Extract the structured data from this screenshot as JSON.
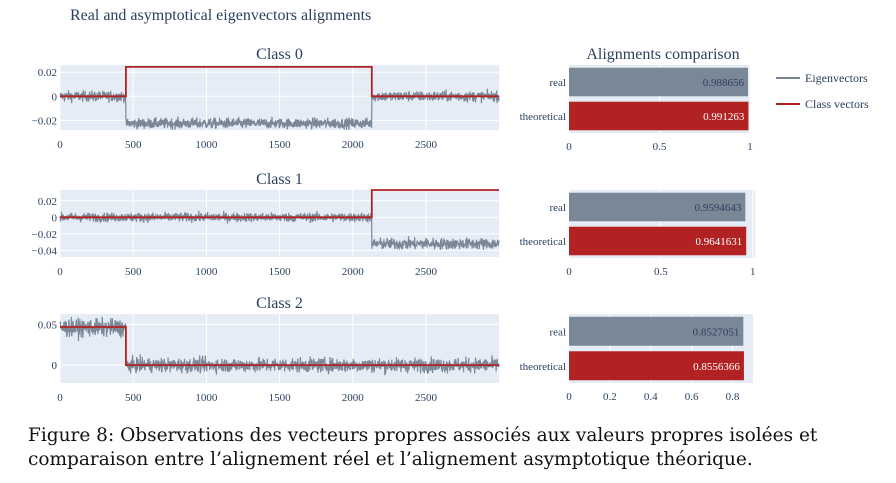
{
  "figure_title": "Real and asymptotical eigenvectors alignments",
  "legend": {
    "eigen_label": "Eigenvectors",
    "class_label": "Class vectors"
  },
  "colors": {
    "eigen": "#7a8797",
    "class_vec": "#b22222",
    "plot_bg": "#e5ecf6",
    "grid": "#ffffff",
    "text": "#2a3f5f"
  },
  "caption": "Figure 8: Observations des vecteurs propres associés aux valeurs propres isolées et comparaison entre l’alignement réel et l’alignement asymptotique théorique.",
  "chart_data": [
    {
      "type": "line",
      "title": "Class 0",
      "x_ticks": [
        0,
        500,
        1000,
        1500,
        2000,
        2500
      ],
      "y_ticks": [
        "0.02",
        "0",
        "−0.02"
      ],
      "y_tick_values": [
        0.02,
        0,
        -0.02
      ],
      "xlim": [
        0,
        2999
      ],
      "ylim": [
        -0.028,
        0.026
      ],
      "series": [
        {
          "name": "Eigenvectors",
          "segments": [
            {
              "x": [
                0,
                450
              ],
              "mean": 0.0,
              "noise": 0.0022
            },
            {
              "x": [
                450,
                2130
              ],
              "mean": -0.0225,
              "noise": 0.0022
            },
            {
              "x": [
                2130,
                2999
              ],
              "mean": 0.0,
              "noise": 0.0022
            }
          ]
        },
        {
          "name": "Class vectors",
          "x": [
            0,
            450,
            450,
            2130,
            2130,
            2999
          ],
          "y": [
            0,
            0,
            0.0244,
            0.0244,
            0,
            0
          ]
        }
      ]
    },
    {
      "type": "line",
      "title": "Class 1",
      "x_ticks": [
        0,
        500,
        1000,
        1500,
        2000,
        2500
      ],
      "y_ticks": [
        "0.02",
        "0",
        "−0.02",
        "−0.04"
      ],
      "y_tick_values": [
        0.02,
        0,
        -0.02,
        -0.04
      ],
      "xlim": [
        0,
        2999
      ],
      "ylim": [
        -0.048,
        0.033
      ],
      "series": [
        {
          "name": "Eigenvectors",
          "segments": [
            {
              "x": [
                0,
                2130
              ],
              "mean": 0.0,
              "noise": 0.0028
            },
            {
              "x": [
                2130,
                2999
              ],
              "mean": -0.032,
              "noise": 0.0035
            }
          ]
        },
        {
          "name": "Class vectors",
          "x": [
            0,
            2130,
            2130,
            2999
          ],
          "y": [
            0,
            0,
            0.033,
            0.033
          ]
        }
      ]
    },
    {
      "type": "line",
      "title": "Class 2",
      "x_ticks": [
        0,
        500,
        1000,
        1500,
        2000,
        2500
      ],
      "y_ticks": [
        "0.05",
        "0"
      ],
      "y_tick_values": [
        0.05,
        0
      ],
      "xlim": [
        0,
        2999
      ],
      "ylim": [
        -0.022,
        0.063
      ],
      "series": [
        {
          "name": "Eigenvectors",
          "segments": [
            {
              "x": [
                0,
                450
              ],
              "mean": 0.046,
              "noise": 0.0055
            },
            {
              "x": [
                450,
                2999
              ],
              "mean": 0.0,
              "noise": 0.0045
            }
          ]
        },
        {
          "name": "Class vectors",
          "x": [
            0,
            450,
            450,
            2999
          ],
          "y": [
            0.047,
            0.047,
            0,
            0
          ]
        }
      ]
    },
    {
      "type": "bar",
      "orientation": "horizontal",
      "title": "Alignments comparison",
      "categories": [
        "real",
        "theoretical"
      ],
      "values": [
        0.988656,
        0.991263
      ],
      "labels": [
        "0.988656",
        "0.991263"
      ],
      "x_ticks": [
        "0",
        "0.5",
        "1"
      ],
      "x_tick_values": [
        0,
        0.5,
        1
      ],
      "xlim": [
        0,
        1.0
      ]
    },
    {
      "type": "bar",
      "orientation": "horizontal",
      "categories": [
        "real",
        "theoretical"
      ],
      "values": [
        0.9594643,
        0.9641631
      ],
      "labels": [
        "0.9594643",
        "0.9641631"
      ],
      "x_ticks": [
        "0",
        "0.5",
        "1"
      ],
      "x_tick_values": [
        0,
        0.5,
        1
      ],
      "xlim": [
        0,
        1.012
      ]
    },
    {
      "type": "bar",
      "orientation": "horizontal",
      "categories": [
        "real",
        "theoretical"
      ],
      "values": [
        0.8527051,
        0.8556366
      ],
      "labels": [
        "0.8527051",
        "0.8556366"
      ],
      "x_ticks": [
        "0",
        "0.2",
        "0.4",
        "0.6",
        "0.8"
      ],
      "x_tick_values": [
        0,
        0.2,
        0.4,
        0.6,
        0.8
      ],
      "xlim": [
        0,
        0.9
      ]
    }
  ]
}
